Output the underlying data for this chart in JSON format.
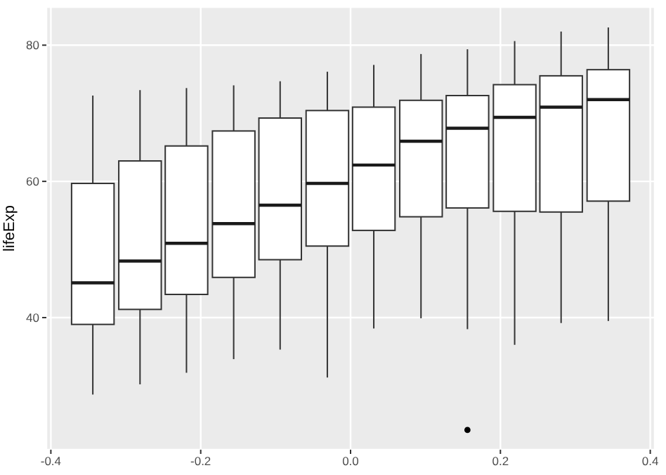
{
  "chart_data": {
    "type": "box",
    "ylabel": "lifeExp",
    "x": [
      -0.344,
      -0.281,
      -0.219,
      -0.156,
      -0.094,
      -0.031,
      0.031,
      0.094,
      0.156,
      0.219,
      0.281,
      0.344
    ],
    "boxes": [
      {
        "low": 28.7,
        "q1": 39.0,
        "median": 45.1,
        "q3": 59.7,
        "high": 72.6
      },
      {
        "low": 30.2,
        "q1": 41.2,
        "median": 48.3,
        "q3": 63.0,
        "high": 73.4
      },
      {
        "low": 31.9,
        "q1": 43.4,
        "median": 50.9,
        "q3": 65.2,
        "high": 73.7
      },
      {
        "low": 33.9,
        "q1": 45.9,
        "median": 53.8,
        "q3": 67.4,
        "high": 74.1
      },
      {
        "low": 35.3,
        "q1": 48.5,
        "median": 56.5,
        "q3": 69.3,
        "high": 74.7
      },
      {
        "low": 31.2,
        "q1": 50.5,
        "median": 59.7,
        "q3": 70.4,
        "high": 76.1
      },
      {
        "low": 38.4,
        "q1": 52.8,
        "median": 62.4,
        "q3": 70.9,
        "high": 77.1
      },
      {
        "low": 39.9,
        "q1": 54.8,
        "median": 65.9,
        "q3": 71.9,
        "high": 78.7
      },
      {
        "low": 38.3,
        "q1": 56.1,
        "median": 67.8,
        "q3": 72.6,
        "high": 79.4,
        "outliers": [
          23.5
        ]
      },
      {
        "low": 36.0,
        "q1": 55.6,
        "median": 69.4,
        "q3": 74.2,
        "high": 80.6
      },
      {
        "low": 39.2,
        "q1": 55.5,
        "median": 70.9,
        "q3": 75.5,
        "high": 82.0
      },
      {
        "low": 39.5,
        "q1": 57.1,
        "median": 72.0,
        "q3": 76.4,
        "high": 82.6
      }
    ],
    "xlim": [
      -0.406,
      0.406
    ],
    "xticks": [
      {
        "value": -0.4,
        "label": "-0.4"
      },
      {
        "value": -0.2,
        "label": "-0.2"
      },
      {
        "value": 0,
        "label": "0.0"
      },
      {
        "value": 0.2,
        "label": "0.2"
      },
      {
        "value": 0.4,
        "label": "0.4"
      }
    ],
    "ylim": [
      20.6,
      85.6
    ],
    "yticks": [
      40,
      60,
      80
    ],
    "grid": true
  }
}
